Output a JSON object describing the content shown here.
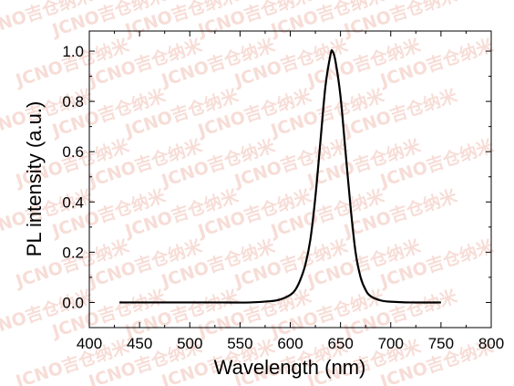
{
  "watermark": {
    "text": "JCNO吉仓纳米",
    "color": "#f2c3b8"
  },
  "chart_data": {
    "type": "line",
    "title": "",
    "xlabel": "Wavelength (nm)",
    "ylabel": "PL intensity (a.u.)",
    "xlim": [
      400,
      800
    ],
    "ylim": [
      -0.1,
      1.08
    ],
    "xticks": [
      400,
      450,
      500,
      550,
      600,
      650,
      700,
      750,
      800
    ],
    "yticks": [
      0.0,
      0.2,
      0.4,
      0.6,
      0.8,
      1.0
    ],
    "xtick_labels": [
      "400",
      "450",
      "500",
      "550",
      "600",
      "650",
      "700",
      "750",
      "800"
    ],
    "ytick_labels": [
      "0.0",
      "0.2",
      "0.4",
      "0.6",
      "0.8",
      "1.0"
    ],
    "grid": false,
    "legend": "none",
    "line_color": "#000000",
    "series": [
      {
        "x": [
          430,
          450,
          480,
          500,
          530,
          560,
          580,
          590,
          600,
          605,
          610,
          615,
          620,
          625,
          630,
          635,
          640,
          642,
          645,
          650,
          655,
          660,
          665,
          670,
          675,
          680,
          690,
          700,
          720,
          750
        ],
        "y": [
          0.0,
          0.0,
          0.0,
          0.0,
          0.0,
          0.0,
          0.005,
          0.012,
          0.03,
          0.05,
          0.09,
          0.15,
          0.25,
          0.42,
          0.64,
          0.86,
          0.985,
          1.0,
          0.96,
          0.82,
          0.6,
          0.38,
          0.2,
          0.1,
          0.05,
          0.025,
          0.008,
          0.003,
          0.0,
          0.0
        ]
      }
    ]
  }
}
